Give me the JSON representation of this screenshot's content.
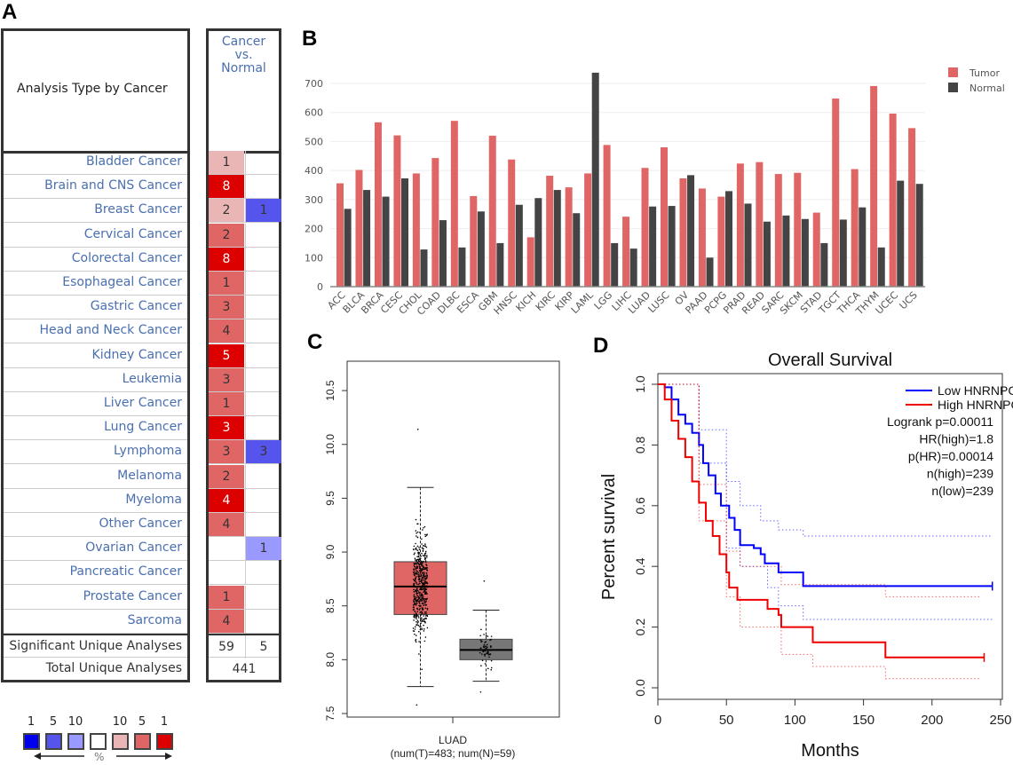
{
  "panel_labels": {
    "a": "A",
    "b": "B",
    "c": "C",
    "d": "D"
  },
  "panel_a": {
    "header_left": "Analysis Type by Cancer",
    "header_right": [
      "Cancer",
      "vs.",
      "Normal"
    ],
    "colors": {
      "red_1": "#dd0000",
      "red_5": "#e06666",
      "red_10": "#eab5b5",
      "blue_1": "#0000ee",
      "blue_5": "#5555ee",
      "blue_10": "#9999ff"
    },
    "rows": [
      {
        "name": "Bladder Cancer",
        "up": "1",
        "up_level": "red_10",
        "down": "",
        "down_level": ""
      },
      {
        "name": "Brain and CNS Cancer",
        "up": "8",
        "up_level": "red_1",
        "down": "",
        "down_level": ""
      },
      {
        "name": "Breast Cancer",
        "up": "2",
        "up_level": "red_10",
        "down": "1",
        "down_level": "blue_5"
      },
      {
        "name": "Cervical Cancer",
        "up": "2",
        "up_level": "red_5",
        "down": "",
        "down_level": ""
      },
      {
        "name": "Colorectal Cancer",
        "up": "8",
        "up_level": "red_1",
        "down": "",
        "down_level": ""
      },
      {
        "name": "Esophageal Cancer",
        "up": "1",
        "up_level": "red_5",
        "down": "",
        "down_level": ""
      },
      {
        "name": "Gastric Cancer",
        "up": "3",
        "up_level": "red_5",
        "down": "",
        "down_level": ""
      },
      {
        "name": "Head and Neck Cancer",
        "up": "4",
        "up_level": "red_5",
        "down": "",
        "down_level": ""
      },
      {
        "name": "Kidney Cancer",
        "up": "5",
        "up_level": "red_1",
        "down": "",
        "down_level": ""
      },
      {
        "name": "Leukemia",
        "up": "3",
        "up_level": "red_5",
        "down": "",
        "down_level": ""
      },
      {
        "name": "Liver Cancer",
        "up": "1",
        "up_level": "red_5",
        "down": "",
        "down_level": ""
      },
      {
        "name": "Lung Cancer",
        "up": "3",
        "up_level": "red_1",
        "down": "",
        "down_level": ""
      },
      {
        "name": "Lymphoma",
        "up": "3",
        "up_level": "red_5",
        "down": "3",
        "down_level": "blue_5"
      },
      {
        "name": "Melanoma",
        "up": "2",
        "up_level": "red_5",
        "down": "",
        "down_level": ""
      },
      {
        "name": "Myeloma",
        "up": "4",
        "up_level": "red_1",
        "down": "",
        "down_level": ""
      },
      {
        "name": "Other Cancer",
        "up": "4",
        "up_level": "red_5",
        "down": "",
        "down_level": ""
      },
      {
        "name": "Ovarian Cancer",
        "up": "",
        "up_level": "",
        "down": "1",
        "down_level": "blue_10"
      },
      {
        "name": "Pancreatic Cancer",
        "up": "",
        "up_level": "",
        "down": "",
        "down_level": ""
      },
      {
        "name": "Prostate Cancer",
        "up": "1",
        "up_level": "red_5",
        "down": "",
        "down_level": ""
      },
      {
        "name": "Sarcoma",
        "up": "4",
        "up_level": "red_5",
        "down": "",
        "down_level": ""
      }
    ],
    "significant": {
      "label": "Significant Unique Analyses",
      "up": "59",
      "down": "5"
    },
    "total": {
      "label": "Total Unique Analyses",
      "value": "441"
    },
    "legend": {
      "labels": [
        "1",
        "5",
        "10",
        "",
        "10",
        "5",
        "1"
      ],
      "levels": [
        "blue_1",
        "blue_5",
        "blue_10",
        "white",
        "red_10",
        "red_5",
        "red_1"
      ],
      "unit": "%"
    }
  },
  "chart_data": [
    {
      "type": "bar",
      "panel": "B",
      "categories": [
        "ACC",
        "BLCA",
        "BRCA",
        "CESC",
        "CHOL",
        "COAD",
        "DLBC",
        "ESCA",
        "GBM",
        "HNSC",
        "KICH",
        "KIRC",
        "KIRP",
        "LAML",
        "LGG",
        "LIHC",
        "LUAD",
        "LUSC",
        "OV",
        "PAAD",
        "PCPG",
        "PRAD",
        "READ",
        "SARC",
        "SKCM",
        "STAD",
        "TGCT",
        "THCA",
        "THYM",
        "UCEC",
        "UCS"
      ],
      "series": [
        {
          "name": "Tumor",
          "color": "#e06666",
          "values": [
            356,
            402,
            566,
            521,
            390,
            443,
            571,
            312,
            520,
            438,
            170,
            382,
            342,
            390,
            488,
            241,
            409,
            480,
            373,
            338,
            310,
            424,
            429,
            388,
            392,
            255,
            648,
            405,
            691,
            596,
            546
          ]
        },
        {
          "name": "Normal",
          "color": "#444444",
          "values": [
            268,
            333,
            310,
            373,
            128,
            229,
            135,
            259,
            150,
            282,
            305,
            333,
            253,
            737,
            150,
            131,
            276,
            278,
            384,
            100,
            329,
            286,
            224,
            245,
            233,
            150,
            231,
            273,
            135,
            365,
            354
          ]
        }
      ],
      "yticks": [
        0,
        100,
        200,
        300,
        400,
        500,
        600,
        700
      ],
      "ylim": [
        0,
        750
      ],
      "grid": true,
      "legend_position": "top-right"
    },
    {
      "type": "box",
      "panel": "C",
      "category": "LUAD",
      "sublabel": "(num(T)=483; num(N)=59)",
      "yticks": [
        "7.5",
        "8.0",
        "8.5",
        "9.0",
        "9.5",
        "10.0",
        "10.5"
      ],
      "ylim": [
        7.45,
        10.78
      ],
      "boxes": [
        {
          "group": "Tumor",
          "n": 483,
          "color": "#e06666",
          "whisker_low": 7.75,
          "q1": 8.42,
          "median": 8.68,
          "q3": 8.91,
          "whisker_high": 9.6,
          "min": 7.58,
          "max": 10.14
        },
        {
          "group": "Normal",
          "n": 59,
          "color": "#777777",
          "whisker_low": 7.8,
          "q1": 8.0,
          "median": 8.09,
          "q3": 8.19,
          "whisker_high": 8.46,
          "min": 7.7,
          "max": 8.73
        }
      ]
    },
    {
      "type": "line",
      "panel": "D",
      "title": "Overall Survival",
      "xlabel": "Months",
      "ylabel": "Percent survival",
      "xticks": [
        "0",
        "50",
        "100",
        "150",
        "200",
        "250"
      ],
      "yticks": [
        "0.0",
        "0.2",
        "0.4",
        "0.6",
        "0.8",
        "1.0"
      ],
      "xlim": [
        0,
        252
      ],
      "ylim": [
        -0.04,
        1.04
      ],
      "series": [
        {
          "name": "Low HNRNPC TPM",
          "color": "#0000ff",
          "x": [
            0,
            5,
            10,
            15,
            20,
            25,
            30,
            33,
            37,
            42,
            46,
            52,
            56,
            60,
            70,
            75,
            78,
            88,
            106,
            244
          ],
          "y": [
            1,
            0.99,
            0.95,
            0.9,
            0.87,
            0.84,
            0.8,
            0.74,
            0.7,
            0.64,
            0.6,
            0.56,
            0.52,
            0.47,
            0.46,
            0.44,
            0.41,
            0.38,
            0.335,
            0.335
          ],
          "ci_upper": {
            "x": [
              0,
              30,
              50,
              60,
              75,
              88,
              106,
              244
            ],
            "y": [
              1,
              0.85,
              0.68,
              0.6,
              0.55,
              0.52,
              0.5,
              0.5
            ]
          },
          "ci_lower": {
            "x": [
              0,
              30,
              50,
              60,
              80,
              88,
              106,
              244
            ],
            "y": [
              1,
              0.74,
              0.46,
              0.4,
              0.33,
              0.27,
              0.225,
              0.225
            ]
          }
        },
        {
          "name": "High HNRNPC TPM",
          "color": "#ee0000",
          "x": [
            0,
            5,
            10,
            15,
            20,
            25,
            30,
            35,
            40,
            45,
            50,
            52,
            58,
            80,
            88,
            90,
            113,
            166,
            238
          ],
          "y": [
            1,
            0.95,
            0.88,
            0.82,
            0.76,
            0.68,
            0.61,
            0.55,
            0.5,
            0.44,
            0.38,
            0.33,
            0.29,
            0.26,
            0.24,
            0.2,
            0.15,
            0.1,
            0.1
          ],
          "ci_upper": {
            "x": [
              0,
              30,
              50,
              60,
              90,
              166,
              236
            ],
            "y": [
              1,
              0.67,
              0.45,
              0.4,
              0.34,
              0.3,
              0.3
            ]
          },
          "ci_lower": {
            "x": [
              0,
              30,
              50,
              60,
              90,
              113,
              166,
              236
            ],
            "y": [
              1,
              0.55,
              0.3,
              0.2,
              0.11,
              0.07,
              0.03,
              0.03
            ]
          }
        }
      ],
      "annotations": [
        "Logrank p=0.00011",
        "HR(high)=1.8",
        "p(HR)=0.00014",
        "n(high)=239",
        "n(low)=239"
      ],
      "legend_position": "top-right"
    }
  ]
}
